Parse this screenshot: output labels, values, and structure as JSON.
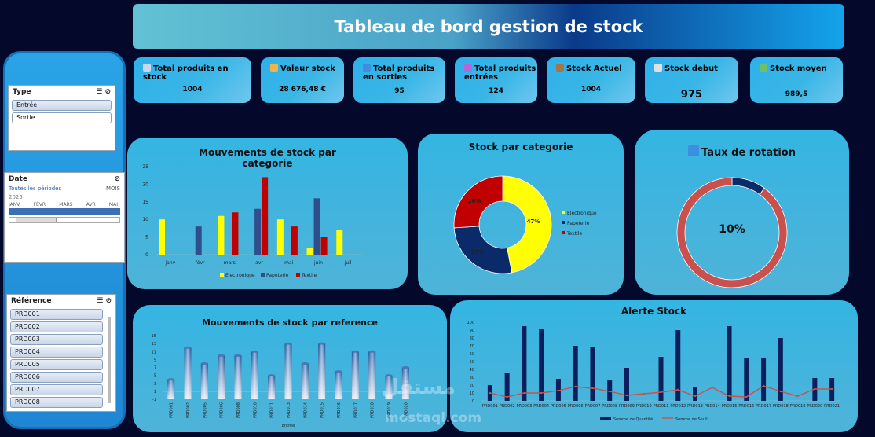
{
  "header": {
    "title": "Tableau de bord gestion de stock"
  },
  "sidebar": {
    "type_slicer": {
      "title": "Type",
      "items": [
        "Entrée",
        "Sortie"
      ]
    },
    "date_slicer": {
      "title": "Date",
      "period": "Toutes les périodes",
      "unit": "MOIS",
      "year": "2025",
      "months": [
        "JANV",
        "FÉVR",
        "MARS",
        "AVR",
        "MAI"
      ]
    },
    "ref_slicer": {
      "title": "Référence",
      "items": [
        "PRD001",
        "PRD002",
        "PRD003",
        "PRD004",
        "PRD005",
        "PRD006",
        "PRD007",
        "PRD008"
      ]
    }
  },
  "kpis": [
    {
      "label": "Total produits en stock",
      "value": "1004",
      "icon": "grid-icon",
      "color": "#c7d8f0"
    },
    {
      "label": "Valeur stock",
      "value": "28 676,48 €",
      "icon": "moneybag-icon",
      "color": "#f0b44a"
    },
    {
      "label": "Total produits en sorties",
      "value": "95",
      "icon": "exchange-icon",
      "color": "#3b8fe0"
    },
    {
      "label": "Total produits entrées",
      "value": "124",
      "icon": "plus-icon",
      "color": "#b06ad8"
    },
    {
      "label": "Stock Actuel",
      "value": "1004",
      "icon": "box-icon",
      "color": "#a8754a"
    },
    {
      "label": "Stock debut",
      "value": "975",
      "icon": "clock-icon",
      "color": "#e0e0e0"
    },
    {
      "label": "Stock moyen",
      "value": "989,5",
      "icon": "barchart-icon",
      "color": "#6dc06a"
    }
  ],
  "chart_data": [
    {
      "type": "bar",
      "title": "Mouvements de stock par categorie",
      "categories": [
        "janv",
        "févr",
        "mars",
        "avr",
        "mai",
        "juin",
        "juil"
      ],
      "series": [
        {
          "name": "Electronique",
          "color": "#ffff00",
          "values": [
            10,
            0,
            11,
            0,
            10,
            2,
            7
          ]
        },
        {
          "name": "Papeterie",
          "color": "#2f4e8c",
          "values": [
            0,
            8,
            0,
            13,
            0,
            16,
            0
          ]
        },
        {
          "name": "Textile",
          "color": "#c00000",
          "values": [
            0,
            0,
            12,
            22,
            8,
            5,
            0
          ]
        }
      ],
      "yticks": [
        0,
        5,
        10,
        15,
        20,
        25
      ],
      "ylim": [
        0,
        25
      ]
    },
    {
      "type": "pie",
      "title": "Stock par categorie",
      "labels": [
        "Electronique",
        "Papeterie",
        "Textile"
      ],
      "values": [
        47,
        27,
        26
      ],
      "display": [
        "47%",
        "27%",
        "26%"
      ],
      "colors": [
        "#ffff00",
        "#0a2a6a",
        "#c00000"
      ]
    },
    {
      "type": "pie",
      "title": "Taux de rotation",
      "labels": [
        "rotation",
        "reste"
      ],
      "values": [
        10,
        90
      ],
      "center_label": "10%",
      "colors": [
        "#0a2a6a",
        "#c9504c"
      ]
    },
    {
      "type": "bar",
      "title": "Mouvements de stock par reference",
      "categories": [
        "PRD001",
        "PRD002",
        "PRD005",
        "PRD006",
        "PRD008",
        "PRD010",
        "PRD011",
        "PRD013",
        "PRD014",
        "PRD015",
        "PRD016",
        "PRD017",
        "PRD018",
        "PRD019",
        "PRD020"
      ],
      "values": [
        4,
        12,
        8,
        10,
        10,
        11,
        5,
        13,
        8,
        13,
        6,
        11,
        11,
        5,
        7
      ],
      "xlabel": "Entrée",
      "yticks": [
        -1,
        1,
        3,
        5,
        7,
        9,
        11,
        13,
        15
      ],
      "ylim": [
        -1,
        15
      ]
    },
    {
      "type": "bar",
      "title": "Alerte Stock",
      "categories": [
        "PRD001",
        "PRD002",
        "PRD003",
        "PRD004",
        "PRD005",
        "PRD006",
        "PRD007",
        "PRD008",
        "PRD009",
        "PRD010",
        "PRD011",
        "PRD012",
        "PRD013",
        "PRD014",
        "PRD015",
        "PRD016",
        "PRD017",
        "PRD018",
        "PRD019",
        "PRD020",
        "PRD021"
      ],
      "series": [
        {
          "name": "Somme de Quantité",
          "kind": "bar",
          "color": "#0a1f5c",
          "values": [
            20,
            35,
            95,
            92,
            28,
            70,
            68,
            27,
            42,
            0,
            56,
            90,
            18,
            0,
            95,
            55,
            54,
            80,
            0,
            29,
            29
          ]
        },
        {
          "name": "Somme de Seuil",
          "kind": "line",
          "color": "#c9504c",
          "values": [
            10,
            5,
            10,
            10,
            13,
            18,
            16,
            12,
            7,
            9,
            11,
            14,
            6,
            17,
            6,
            5,
            19,
            12,
            6,
            15,
            15
          ]
        }
      ],
      "yticks": [
        0,
        10,
        20,
        30,
        40,
        50,
        60,
        70,
        80,
        90,
        100
      ],
      "ylim": [
        0,
        100
      ]
    }
  ],
  "watermark": {
    "arabic": "مستقل",
    "latin": "mostaql.com"
  }
}
